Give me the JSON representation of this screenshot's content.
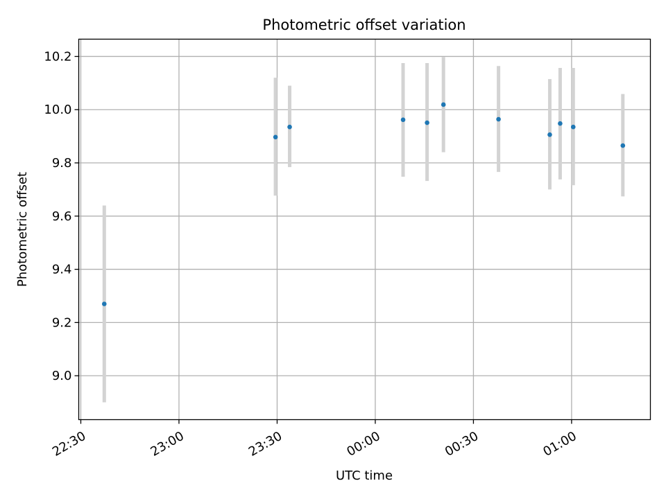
{
  "chart_data": {
    "type": "scatter",
    "title": "Photometric offset variation",
    "xlabel": "UTC time",
    "ylabel": "Photometric offset",
    "x_ticks": [
      "22:30",
      "23:00",
      "23:30",
      "00:00",
      "00:30",
      "01:00"
    ],
    "y_ticks": [
      "9.0",
      "9.2",
      "9.4",
      "9.6",
      "9.8",
      "10.0",
      "10.2"
    ],
    "x_range_utc": [
      "22:29:22",
      "01:24:05"
    ],
    "ylim": [
      8.835,
      10.265
    ],
    "grid": true,
    "marker_color": "#1f77b4",
    "errorbar_color": "#d3d3d3",
    "points": [
      {
        "time": "22:37:10",
        "value": 9.27,
        "low": 8.9,
        "high": 9.64
      },
      {
        "time": "23:29:30",
        "value": 9.897,
        "low": 9.677,
        "high": 10.12
      },
      {
        "time": "23:33:50",
        "value": 9.935,
        "low": 9.784,
        "high": 10.09
      },
      {
        "time": "00:08:30",
        "value": 9.962,
        "low": 9.748,
        "high": 10.175
      },
      {
        "time": "00:15:50",
        "value": 9.951,
        "low": 9.732,
        "high": 10.175
      },
      {
        "time": "00:20:50",
        "value": 10.019,
        "low": 9.84,
        "high": 10.198
      },
      {
        "time": "00:37:40",
        "value": 9.964,
        "low": 9.766,
        "high": 10.164
      },
      {
        "time": "00:53:20",
        "value": 9.906,
        "low": 9.7,
        "high": 10.115
      },
      {
        "time": "00:56:30",
        "value": 9.948,
        "low": 9.738,
        "high": 10.157
      },
      {
        "time": "01:00:30",
        "value": 9.935,
        "low": 9.716,
        "high": 10.157
      },
      {
        "time": "01:15:40",
        "value": 9.865,
        "low": 9.674,
        "high": 10.059
      }
    ]
  }
}
